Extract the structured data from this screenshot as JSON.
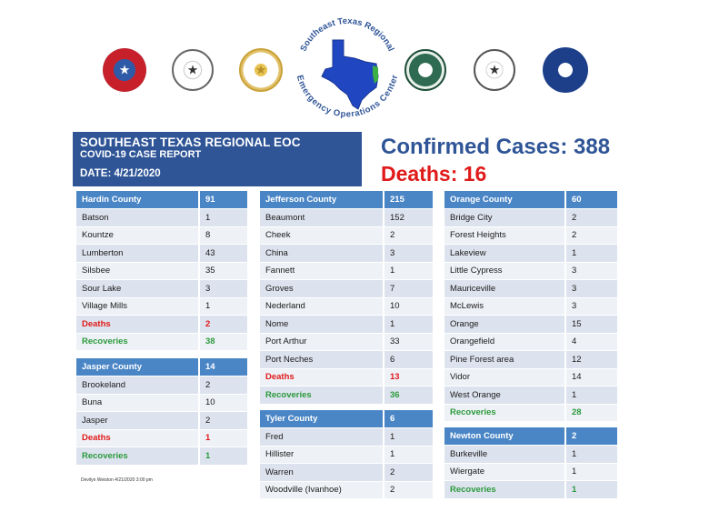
{
  "logo": {
    "text": "Southeast Texas Regional Emergency Operations Center",
    "top_arc": "Southeast Texas Regional",
    "bottom_arc": "Emergency Operations Center"
  },
  "header": {
    "title": "SOUTHEAST TEXAS REGIONAL EOC",
    "subtitle": "COVID-19 CASE REPORT",
    "date": "DATE:  4/21/2020"
  },
  "summary": {
    "confirmed": "Confirmed Cases: 388",
    "deaths": "Deaths:  16"
  },
  "colors": {
    "header_bg": "#2f5597",
    "table_head": "#4a86c6",
    "red": "#e01a1a",
    "green": "#2b9a3c"
  },
  "hardin": {
    "county": "Hardin County",
    "total": "91",
    "rows": [
      {
        "name": "Batson",
        "value": "1"
      },
      {
        "name": "Kountze",
        "value": "8"
      },
      {
        "name": "Lumberton",
        "value": "43"
      },
      {
        "name": "Silsbee",
        "value": "35"
      },
      {
        "name": "Sour Lake",
        "value": "3"
      },
      {
        "name": "Village Mills",
        "value": "1"
      }
    ],
    "deaths_label": "Deaths",
    "deaths": "2",
    "recoveries_label": "Recoveries",
    "recoveries": "38"
  },
  "jasper": {
    "county": "Jasper County",
    "total": "14",
    "rows": [
      {
        "name": "Brookeland",
        "value": "2"
      },
      {
        "name": "Buna",
        "value": "10"
      },
      {
        "name": "Jasper",
        "value": "2"
      }
    ],
    "deaths_label": "Deaths",
    "deaths": "1",
    "recoveries_label": "Recoveries",
    "recoveries": "1"
  },
  "jefferson": {
    "county": "Jefferson County",
    "total": "215",
    "rows": [
      {
        "name": "Beaumont",
        "value": "152"
      },
      {
        "name": "Cheek",
        "value": "2"
      },
      {
        "name": "China",
        "value": "3"
      },
      {
        "name": "Fannett",
        "value": "1"
      },
      {
        "name": "Groves",
        "value": "7"
      },
      {
        "name": "Nederland",
        "value": "10"
      },
      {
        "name": "Nome",
        "value": "1"
      },
      {
        "name": "Port Arthur",
        "value": "33"
      },
      {
        "name": "Port Neches",
        "value": "6"
      }
    ],
    "deaths_label": "Deaths",
    "deaths": "13",
    "recoveries_label": "Recoveries",
    "recoveries": "36"
  },
  "tyler": {
    "county": "Tyler County",
    "total": "6",
    "rows": [
      {
        "name": "Fred",
        "value": "1"
      },
      {
        "name": "Hillister",
        "value": "1"
      },
      {
        "name": "Warren",
        "value": "2"
      },
      {
        "name": "Woodville (Ivanhoe)",
        "value": "2"
      }
    ]
  },
  "orange": {
    "county": "Orange County",
    "total": "60",
    "rows": [
      {
        "name": "Bridge City",
        "value": "2"
      },
      {
        "name": "Forest Heights",
        "value": "2"
      },
      {
        "name": "Lakeview",
        "value": "1"
      },
      {
        "name": "Little Cypress",
        "value": "3"
      },
      {
        "name": "Mauriceville",
        "value": "3"
      },
      {
        "name": "McLewis",
        "value": "3"
      },
      {
        "name": "Orange",
        "value": "15"
      },
      {
        "name": "Orangefield",
        "value": "4"
      },
      {
        "name": "Pine Forest area",
        "value": "12"
      },
      {
        "name": "Vidor",
        "value": "14"
      },
      {
        "name": "West Orange",
        "value": "1"
      }
    ],
    "recoveries_label": "Recoveries",
    "recoveries": "28"
  },
  "newton": {
    "county": "Newton County",
    "total": "2",
    "rows": [
      {
        "name": "Burkeville",
        "value": "1"
      },
      {
        "name": "Wiergate",
        "value": "1"
      }
    ],
    "recoveries_label": "Recoveries",
    "recoveries": "1"
  },
  "footer": {
    "signature": "Devilyn Weiston 4/21/2020 3:00 pm"
  }
}
